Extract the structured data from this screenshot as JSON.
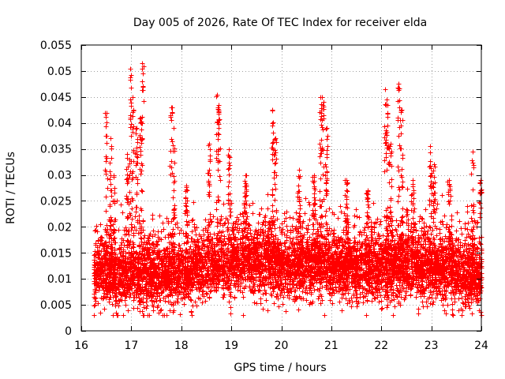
{
  "chart_data": {
    "type": "scatter",
    "title": "Day 005 of 2026, Rate Of TEC Index for receiver elda",
    "xlabel": "GPS time / hours",
    "ylabel": "ROTI / TECUs",
    "xlim": [
      16,
      24
    ],
    "ylim": [
      0,
      0.055
    ],
    "xticks": [
      16,
      17,
      18,
      19,
      20,
      21,
      22,
      23,
      24
    ],
    "xtick_labels": [
      "16",
      "17",
      "18",
      "19",
      "20",
      "21",
      "22",
      "23",
      "24"
    ],
    "yticks": [
      0,
      0.005,
      0.01,
      0.015,
      0.02,
      0.025,
      0.03,
      0.035,
      0.04,
      0.045,
      0.05,
      0.055
    ],
    "ytick_labels": [
      "0",
      "0.005",
      "0.01",
      "0.015",
      "0.02",
      "0.025",
      "0.03",
      "0.035",
      "0.04",
      "0.045",
      "0.05",
      "0.055"
    ],
    "grid": true,
    "marker": "+",
    "color": "#ff0000",
    "series": [
      {
        "name": "ROTI",
        "baseline": [
          [
            16.25,
            0.011
          ],
          [
            16.5,
            0.0115
          ],
          [
            16.75,
            0.0105
          ],
          [
            17.0,
            0.0115
          ],
          [
            17.25,
            0.0105
          ],
          [
            17.5,
            0.011
          ],
          [
            17.75,
            0.0115
          ],
          [
            18.0,
            0.011
          ],
          [
            18.25,
            0.012
          ],
          [
            18.5,
            0.0125
          ],
          [
            18.75,
            0.013
          ],
          [
            19.0,
            0.013
          ],
          [
            19.25,
            0.0135
          ],
          [
            19.5,
            0.013
          ],
          [
            19.75,
            0.0135
          ],
          [
            20.0,
            0.012
          ],
          [
            20.25,
            0.0125
          ],
          [
            20.5,
            0.013
          ],
          [
            20.75,
            0.0135
          ],
          [
            21.0,
            0.0125
          ],
          [
            21.25,
            0.0125
          ],
          [
            21.5,
            0.012
          ],
          [
            21.75,
            0.0125
          ],
          [
            22.0,
            0.012
          ],
          [
            22.25,
            0.0125
          ],
          [
            22.5,
            0.0125
          ],
          [
            22.75,
            0.012
          ],
          [
            23.0,
            0.012
          ],
          [
            23.25,
            0.0115
          ],
          [
            23.5,
            0.0115
          ],
          [
            23.75,
            0.011
          ],
          [
            24.0,
            0.011
          ]
        ],
        "spikes": [
          [
            16.5,
            0.042
          ],
          [
            16.58,
            0.037
          ],
          [
            16.65,
            0.03
          ],
          [
            16.92,
            0.034
          ],
          [
            16.98,
            0.0505
          ],
          [
            17.02,
            0.045
          ],
          [
            17.1,
            0.039
          ],
          [
            17.18,
            0.041
          ],
          [
            17.22,
            0.0515
          ],
          [
            17.8,
            0.043
          ],
          [
            17.85,
            0.039
          ],
          [
            18.1,
            0.028
          ],
          [
            18.55,
            0.036
          ],
          [
            18.72,
            0.0455
          ],
          [
            18.75,
            0.0435
          ],
          [
            18.95,
            0.035
          ],
          [
            19.28,
            0.03
          ],
          [
            19.82,
            0.0425
          ],
          [
            19.88,
            0.037
          ],
          [
            20.35,
            0.031
          ],
          [
            20.65,
            0.03
          ],
          [
            20.78,
            0.045
          ],
          [
            20.82,
            0.045
          ],
          [
            20.9,
            0.039
          ],
          [
            21.3,
            0.029
          ],
          [
            21.72,
            0.027
          ],
          [
            22.08,
            0.0465
          ],
          [
            22.12,
            0.0435
          ],
          [
            22.18,
            0.036
          ],
          [
            22.35,
            0.0475
          ],
          [
            22.4,
            0.0425
          ],
          [
            22.62,
            0.029
          ],
          [
            22.98,
            0.0355
          ],
          [
            23.05,
            0.032
          ],
          [
            23.35,
            0.029
          ],
          [
            23.82,
            0.0345
          ],
          [
            23.98,
            0.029
          ]
        ],
        "min_value": 0.003,
        "typical_range": [
          0.005,
          0.02
        ],
        "approx_point_count": 7000
      }
    ]
  }
}
